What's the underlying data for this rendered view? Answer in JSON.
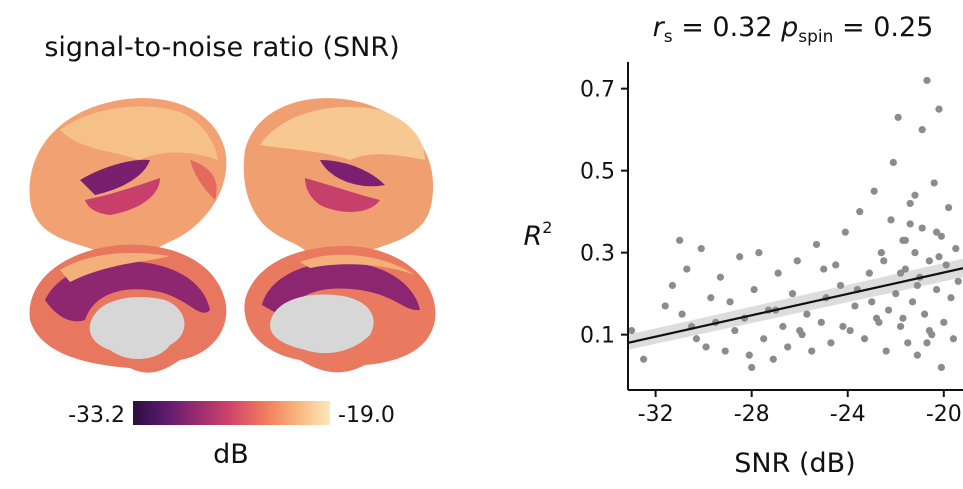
{
  "chart_data": [
    {
      "type": "surface-map",
      "title": "signal-to-noise ratio (SNR)",
      "colorbar_ticks": [
        -33.2,
        {
          "value": -19,
          "label": "-19.0"
        }
      ],
      "colorbar_label": "dB",
      "colormap": [
        "#2a0f3f",
        "#5d1a6e",
        "#9b2c6f",
        "#d2466a",
        "#f07a5c",
        "#f8b57d",
        "#fde9b8"
      ]
    },
    {
      "type": "scatter",
      "title_parts": [
        "r",
        "s",
        " = 0.32 ",
        "p",
        "spin",
        " = 0.25"
      ],
      "ylabel_parts": [
        "R",
        "2"
      ],
      "xlabel": "SNR (dB)",
      "xlim": [
        -33.15,
        -19.2
      ],
      "xticks": [
        -32,
        -28,
        -24,
        -20
      ],
      "ylim": [
        -0.035,
        0.765
      ],
      "yticks": [
        0.1,
        0.3,
        0.5,
        0.7
      ],
      "color": "#8c8c8c",
      "x": [
        -33.0,
        -32.5,
        -31.6,
        -31.3,
        -31.0,
        -30.9,
        -30.7,
        -30.5,
        -30.3,
        -30.1,
        -29.9,
        -29.7,
        -29.5,
        -29.3,
        -29.1,
        -28.9,
        -28.7,
        -28.5,
        -28.3,
        -28.1,
        -27.9,
        -27.7,
        -27.5,
        -27.3,
        -27.1,
        -26.9,
        -26.7,
        -26.5,
        -26.3,
        -26.1,
        -25.9,
        -25.7,
        -25.5,
        -25.3,
        -25.1,
        -24.9,
        -24.7,
        -24.5,
        -24.3,
        -24.1,
        -23.9,
        -23.7,
        -23.5,
        -23.3,
        -23.1,
        -22.9,
        -22.8,
        -22.6,
        -22.4,
        -22.2,
        -22.0,
        -21.9,
        -21.8,
        -21.7,
        -21.6,
        -21.5,
        -21.4,
        -21.3,
        -21.2,
        -21.1,
        -21.0,
        -20.9,
        -20.8,
        -20.7,
        -20.6,
        -20.5,
        -20.4,
        -20.3,
        -20.2,
        -20.1,
        -20.0,
        -19.9,
        -19.8,
        -19.7,
        -19.6,
        -19.5,
        -19.4,
        -23.0,
        -22.5,
        -22.1,
        -21.7,
        -21.4,
        -21.1,
        -20.9,
        -20.6,
        -20.3,
        -20.1,
        -22.3,
        -21.8,
        -21.2,
        -20.7,
        -20.2,
        -24.2,
        -23.6,
        -22.7,
        -21.6,
        -25.0,
        -26.0,
        -27.0,
        -28.0
      ],
      "values": [
        0.11,
        0.04,
        0.17,
        0.22,
        0.33,
        0.15,
        0.26,
        0.12,
        0.09,
        0.31,
        0.07,
        0.19,
        0.13,
        0.24,
        0.06,
        0.18,
        0.11,
        0.29,
        0.14,
        0.05,
        0.21,
        0.3,
        0.09,
        0.16,
        0.04,
        0.25,
        0.12,
        0.07,
        0.2,
        0.28,
        0.1,
        0.15,
        0.06,
        0.32,
        0.13,
        0.19,
        0.08,
        0.27,
        0.22,
        0.35,
        0.11,
        0.17,
        0.4,
        0.09,
        0.25,
        0.45,
        0.14,
        0.3,
        0.06,
        0.38,
        0.2,
        0.63,
        0.12,
        0.33,
        0.26,
        0.08,
        0.42,
        0.18,
        0.3,
        0.05,
        0.24,
        0.36,
        0.15,
        0.72,
        0.28,
        0.1,
        0.47,
        0.21,
        0.65,
        0.34,
        0.13,
        0.27,
        0.41,
        0.19,
        0.09,
        0.31,
        0.23,
        0.18,
        0.28,
        0.52,
        0.14,
        0.37,
        0.22,
        0.6,
        0.11,
        0.35,
        0.02,
        0.16,
        0.25,
        0.44,
        0.08,
        0.29,
        0.12,
        0.21,
        0.13,
        0.33,
        0.26,
        0.11,
        0.16,
        0.02
      ],
      "fit": {
        "x": [
          -33.15,
          -19.2
        ],
        "y": [
          0.08,
          0.262
        ],
        "lower": [
          0.063,
          0.24
        ],
        "upper": [
          0.1,
          0.285
        ],
        "color": "#111111",
        "band_color": "#d4d4d4"
      }
    }
  ]
}
